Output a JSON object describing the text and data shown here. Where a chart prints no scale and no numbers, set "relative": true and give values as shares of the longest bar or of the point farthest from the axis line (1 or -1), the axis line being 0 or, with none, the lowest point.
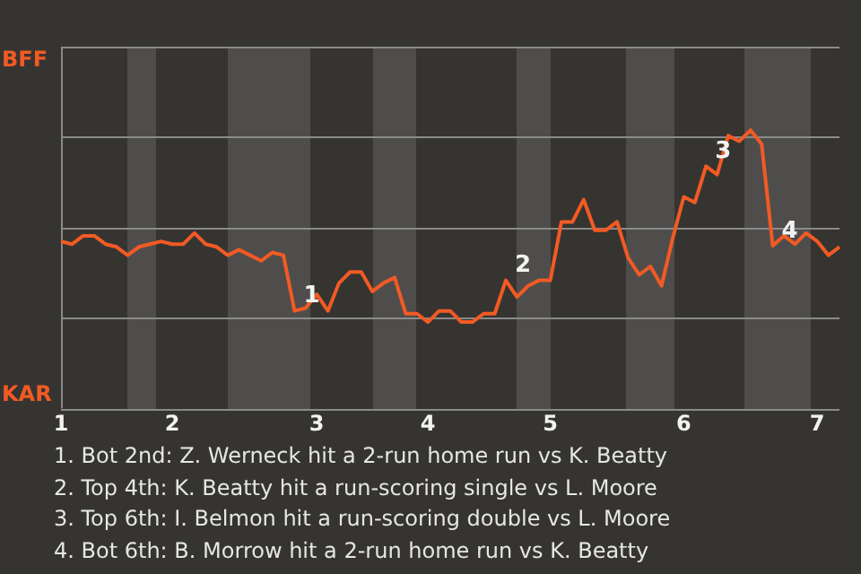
{
  "chart_data": {
    "type": "line",
    "relative": true,
    "categories": [
      "1",
      null,
      null,
      null,
      null,
      null,
      null,
      null,
      null,
      null,
      "2",
      null,
      null,
      null,
      null,
      null,
      null,
      null,
      null,
      null,
      null,
      null,
      null,
      "3",
      null,
      null,
      null,
      null,
      null,
      null,
      null,
      null,
      null,
      "4",
      null,
      null,
      null,
      null,
      null,
      null,
      null,
      null,
      null,
      null,
      "5",
      null,
      null,
      null,
      null,
      null,
      null,
      null,
      null,
      null,
      null,
      null,
      "6",
      null,
      null,
      null,
      null,
      null,
      null,
      null,
      null,
      null,
      null,
      null,
      "7",
      null,
      null
    ],
    "series": [
      {
        "color": "#f25a24",
        "values": [
          0.6,
          0.59,
          0.62,
          0.62,
          0.59,
          0.58,
          0.55,
          0.58,
          0.59,
          0.6,
          0.59,
          0.59,
          0.63,
          0.59,
          0.58,
          0.55,
          0.57,
          0.55,
          0.53,
          0.56,
          0.55,
          0.35,
          0.36,
          0.41,
          0.35,
          0.45,
          0.49,
          0.49,
          0.42,
          0.45,
          0.47,
          0.34,
          0.34,
          0.31,
          0.35,
          0.35,
          0.31,
          0.31,
          0.34,
          0.34,
          0.46,
          0.4,
          0.44,
          0.46,
          0.46,
          0.67,
          0.67,
          0.75,
          0.64,
          0.64,
          0.67,
          0.54,
          0.48,
          0.51,
          0.44,
          0.61,
          0.76,
          0.74,
          0.87,
          0.84,
          0.98,
          0.96,
          1,
          0.95,
          0.584,
          0.62,
          0.59,
          0.63,
          0.6,
          0.55,
          0.58
        ]
      }
    ],
    "grid": "y",
    "marker": "none",
    "line_style": "solid",
    "annotations": [
      "BFF",
      "KAR",
      {
        "text": "1",
        "y": 0.35
      },
      {
        "text": "2",
        "y": 0.46
      },
      {
        "text": "3",
        "y": 0.87
      },
      {
        "text": "4",
        "y": 0.584
      },
      "1. Bot 2nd: Z. Werneck hit a 2-run home run vs K. Beatty",
      "2. Top 4th: K. Beatty hit a run-scoring single vs L. Moore",
      "3. Top 6th: I. Belmon hit a run-scoring double vs L. Moore",
      "4. Bot 6th: B. Morrow hit a 2-run home run vs K. Beatty"
    ]
  }
}
